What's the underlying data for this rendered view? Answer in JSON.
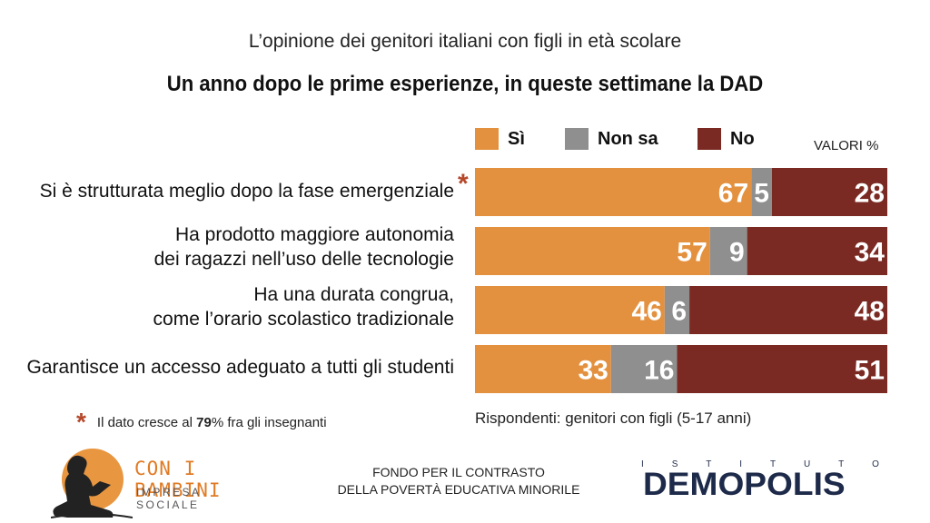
{
  "header": {
    "subtitle": "L’opinione dei genitori italiani con figli in età scolare",
    "title": "Un anno dopo le prime esperienze, in queste settimane la DAD"
  },
  "legend": [
    {
      "label": "Sì",
      "color": "#e3913f"
    },
    {
      "label": "Non sa",
      "color": "#8f8f8f"
    },
    {
      "label": "No",
      "color": "#7a2a22"
    }
  ],
  "units_label": "VALORI %",
  "rows": [
    {
      "line1": "Si è strutturata meglio dopo la fase emergenziale",
      "line2": "",
      "starred": true
    },
    {
      "line1": "Ha prodotto maggiore autonomia",
      "line2": "dei ragazzi nell’uso delle tecnologie",
      "starred": false
    },
    {
      "line1": "Ha una durata congrua,",
      "line2": "come l’orario scolastico tradizionale",
      "starred": false
    },
    {
      "line1": "Garantisce un accesso adeguato a tutti gli studenti",
      "line2": "",
      "starred": false
    }
  ],
  "chart_data": {
    "type": "bar",
    "orientation": "horizontal",
    "stacked": true,
    "categories": [
      "Si è strutturata meglio dopo la fase emergenziale",
      "Ha prodotto maggiore autonomia dei ragazzi nell’uso delle tecnologie",
      "Ha una durata congrua, come l’orario scolastico tradizionale",
      "Garantisce un accesso adeguato a tutti gli studenti"
    ],
    "series": [
      {
        "name": "Sì",
        "values": [
          67,
          57,
          46,
          33
        ],
        "color": "#e3913f"
      },
      {
        "name": "Non sa",
        "values": [
          5,
          9,
          6,
          16
        ],
        "color": "#8f8f8f"
      },
      {
        "name": "No",
        "values": [
          28,
          34,
          48,
          51
        ],
        "color": "#7a2a22"
      }
    ],
    "title": "Un anno dopo le prime esperienze, in queste settimane la DAD",
    "xlim": [
      0,
      100
    ],
    "legend_position": "top",
    "grid": false
  },
  "footnote": {
    "star": "*",
    "prefix": "Il dato cresce al ",
    "highlight": "79",
    "suffix": "% fra gli insegnanti"
  },
  "respondents": "Rispondenti: genitori con figli (5-17 anni)",
  "logo_left": {
    "title": "CON I BAMBINI",
    "subtitle": "IMPRESA SOCIALE",
    "circle_color": "#e8963f"
  },
  "fund": {
    "line1": "FONDO PER IL CONTRASTO",
    "line2": "DELLA POVERTÀ EDUCATIVA MINORILE"
  },
  "logo_right": {
    "top_letters": [
      "I",
      "S",
      "T",
      "I",
      "T",
      "U",
      "T",
      "O"
    ],
    "main": "DEMOPOLIS",
    "color": "#1e2a4a",
    "accent": "#e8963f"
  }
}
